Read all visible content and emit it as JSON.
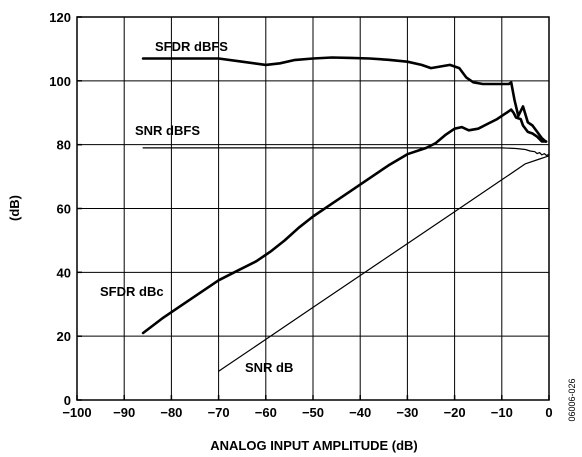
{
  "chart_data": {
    "type": "line",
    "xlabel": "ANALOG INPUT AMPLITUDE (dB)",
    "ylabel": "(dB)",
    "xlim": [
      -100,
      0
    ],
    "ylim": [
      0,
      120
    ],
    "xticks": [
      -100,
      -90,
      -80,
      -70,
      -60,
      -50,
      -40,
      -30,
      -20,
      -10,
      0
    ],
    "yticks": [
      0,
      20,
      40,
      60,
      80,
      100,
      120
    ],
    "grid": true,
    "figure_id": "06006-026",
    "series": [
      {
        "name": "SFDR dBFS",
        "stroke": "thick",
        "x": [
          -86,
          -80,
          -75,
          -70,
          -65,
          -60,
          -57,
          -54,
          -50,
          -46,
          -42,
          -38,
          -34,
          -30,
          -27,
          -25,
          -23,
          -21,
          -19,
          -17.5,
          -16,
          -14,
          -12,
          -10,
          -8.5,
          -8,
          -7.3,
          -6.5,
          -5.5,
          -4.5,
          -3.5,
          -2.5,
          -1.5,
          -0.7
        ],
        "y": [
          107,
          107,
          107,
          107,
          106,
          105,
          105.5,
          106.5,
          107,
          107.3,
          107.2,
          107,
          106.6,
          106,
          105,
          104,
          104.5,
          105,
          104,
          101,
          99.5,
          99,
          99,
          99,
          99,
          99.5,
          94,
          89,
          92,
          87,
          86,
          84,
          82,
          81
        ]
      },
      {
        "name": "SNR dBFS",
        "stroke": "thin",
        "x": [
          -86,
          -60,
          -40,
          -20,
          -10,
          -7,
          -5,
          -4,
          -3,
          -2.5,
          -2,
          -1.5,
          -1,
          -0.5,
          0
        ],
        "y": [
          79,
          79,
          79,
          79,
          79,
          78.8,
          78.5,
          78,
          77.8,
          77.2,
          77.5,
          76.8,
          77.2,
          76.6,
          77
        ]
      },
      {
        "name": "SFDR dBc",
        "stroke": "thick",
        "x": [
          -86,
          -82,
          -78,
          -74,
          -70,
          -66,
          -62,
          -59,
          -56,
          -53,
          -50,
          -46,
          -42,
          -38,
          -34,
          -30,
          -26,
          -24,
          -22,
          -20,
          -18.5,
          -17,
          -15,
          -13,
          -11,
          -9.5,
          -8.5,
          -8,
          -7.5,
          -7,
          -6,
          -5.5,
          -4.5,
          -3.5,
          -2.5,
          -1.5,
          -0.6
        ],
        "y": [
          21,
          25.5,
          29.5,
          33.5,
          37.5,
          40.5,
          43.5,
          46.5,
          50,
          54,
          57.5,
          61.5,
          65.5,
          69.5,
          73.5,
          77,
          79,
          80.5,
          83,
          85,
          85.5,
          84.5,
          85,
          86.5,
          88,
          89.5,
          90.5,
          91,
          90,
          88.5,
          88,
          86,
          84,
          83.5,
          82.5,
          81,
          81
        ]
      },
      {
        "name": "SNR dB",
        "stroke": "thin",
        "x": [
          -70,
          -60,
          -50,
          -40,
          -30,
          -20,
          -10,
          -5,
          -2,
          -1,
          0
        ],
        "y": [
          9,
          19,
          29,
          39,
          49,
          59,
          69,
          74,
          75.5,
          76,
          76.5
        ]
      }
    ]
  }
}
